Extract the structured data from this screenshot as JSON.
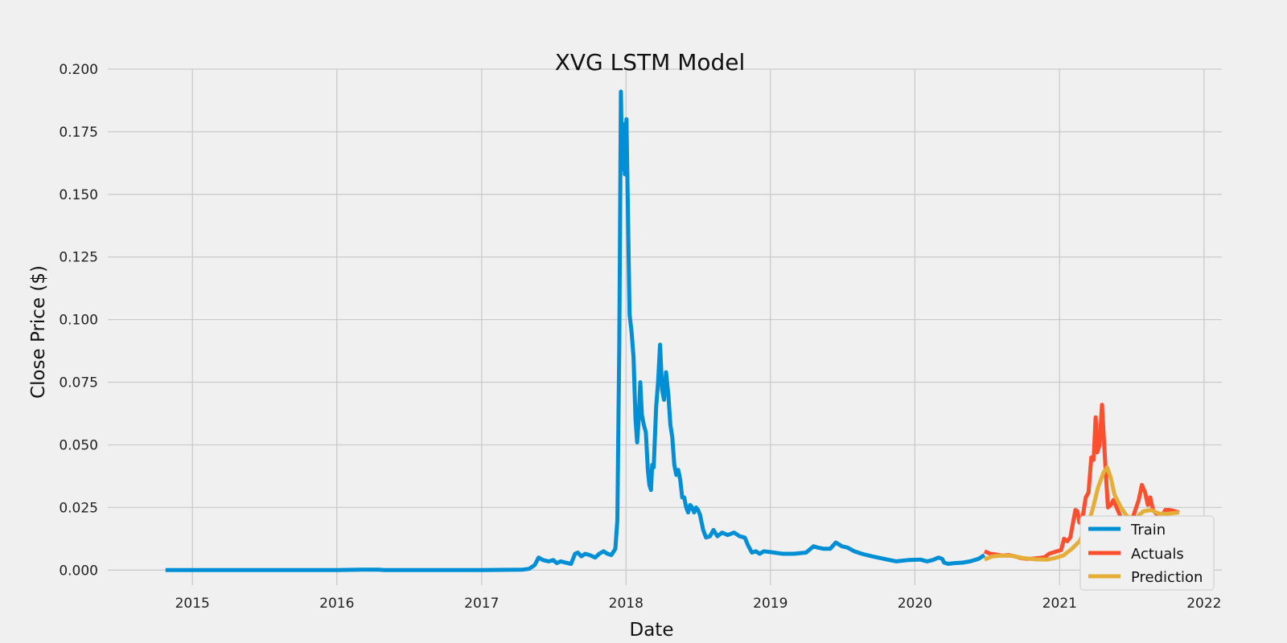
{
  "chart_data": {
    "type": "line",
    "title": "XVG LSTM Model",
    "xlabel": "Date",
    "ylabel": "Close Price ($)",
    "xlim": [
      "2014-06-01",
      "2022-02-15"
    ],
    "ylim": [
      -0.006,
      0.2
    ],
    "x_ticks": [
      "2015",
      "2016",
      "2017",
      "2018",
      "2019",
      "2020",
      "2021",
      "2022"
    ],
    "y_ticks": [
      "0.000",
      "0.025",
      "0.050",
      "0.075",
      "0.100",
      "0.125",
      "0.150",
      "0.175",
      "0.200"
    ],
    "grid": true,
    "legend_position": "lower right",
    "series": [
      {
        "name": "Train",
        "color": "#008fd5",
        "points": [
          [
            "2014-10-25",
            0.0
          ],
          [
            "2015-06-01",
            0.0
          ],
          [
            "2016-01-01",
            0.0
          ],
          [
            "2016-03-01",
            0.0002
          ],
          [
            "2016-04-15",
            0.0002
          ],
          [
            "2016-05-01",
            0.0
          ],
          [
            "2017-01-01",
            0.0
          ],
          [
            "2017-04-15",
            0.0002
          ],
          [
            "2017-05-01",
            0.0005
          ],
          [
            "2017-05-15",
            0.002
          ],
          [
            "2017-05-25",
            0.005
          ],
          [
            "2017-06-05",
            0.004
          ],
          [
            "2017-06-20",
            0.0035
          ],
          [
            "2017-07-01",
            0.004
          ],
          [
            "2017-07-10",
            0.0028
          ],
          [
            "2017-07-20",
            0.0035
          ],
          [
            "2017-08-01",
            0.003
          ],
          [
            "2017-08-15",
            0.0025
          ],
          [
            "2017-08-25",
            0.0065
          ],
          [
            "2017-09-01",
            0.007
          ],
          [
            "2017-09-10",
            0.0055
          ],
          [
            "2017-09-20",
            0.0065
          ],
          [
            "2017-10-01",
            0.006
          ],
          [
            "2017-10-15",
            0.005
          ],
          [
            "2017-10-25",
            0.0065
          ],
          [
            "2017-11-05",
            0.0075
          ],
          [
            "2017-11-15",
            0.0065
          ],
          [
            "2017-11-25",
            0.006
          ],
          [
            "2017-12-05",
            0.0085
          ],
          [
            "2017-12-10",
            0.02
          ],
          [
            "2017-12-15",
            0.09
          ],
          [
            "2017-12-19",
            0.191
          ],
          [
            "2017-12-22",
            0.16
          ],
          [
            "2017-12-26",
            0.178
          ],
          [
            "2017-12-29",
            0.158
          ],
          [
            "2018-01-02",
            0.18
          ],
          [
            "2018-01-06",
            0.14
          ],
          [
            "2018-01-10",
            0.102
          ],
          [
            "2018-01-15",
            0.095
          ],
          [
            "2018-01-20",
            0.085
          ],
          [
            "2018-01-25",
            0.06
          ],
          [
            "2018-01-29",
            0.051
          ],
          [
            "2018-02-02",
            0.06
          ],
          [
            "2018-02-06",
            0.075
          ],
          [
            "2018-02-10",
            0.062
          ],
          [
            "2018-02-15",
            0.058
          ],
          [
            "2018-02-20",
            0.055
          ],
          [
            "2018-02-25",
            0.04
          ],
          [
            "2018-03-01",
            0.034
          ],
          [
            "2018-03-05",
            0.032
          ],
          [
            "2018-03-08",
            0.042
          ],
          [
            "2018-03-12",
            0.041
          ],
          [
            "2018-03-18",
            0.065
          ],
          [
            "2018-03-23",
            0.075
          ],
          [
            "2018-03-28",
            0.09
          ],
          [
            "2018-04-02",
            0.072
          ],
          [
            "2018-04-07",
            0.068
          ],
          [
            "2018-04-12",
            0.079
          ],
          [
            "2018-04-18",
            0.07
          ],
          [
            "2018-04-23",
            0.058
          ],
          [
            "2018-04-28",
            0.053
          ],
          [
            "2018-05-03",
            0.042
          ],
          [
            "2018-05-08",
            0.038
          ],
          [
            "2018-05-13",
            0.04
          ],
          [
            "2018-05-18",
            0.036
          ],
          [
            "2018-05-23",
            0.029
          ],
          [
            "2018-05-28",
            0.029
          ],
          [
            "2018-06-02",
            0.025
          ],
          [
            "2018-06-07",
            0.023
          ],
          [
            "2018-06-12",
            0.026
          ],
          [
            "2018-06-17",
            0.025
          ],
          [
            "2018-06-22",
            0.023
          ],
          [
            "2018-06-27",
            0.025
          ],
          [
            "2018-07-02",
            0.024
          ],
          [
            "2018-07-07",
            0.022
          ],
          [
            "2018-07-15",
            0.016
          ],
          [
            "2018-07-22",
            0.013
          ],
          [
            "2018-08-01",
            0.0135
          ],
          [
            "2018-08-10",
            0.016
          ],
          [
            "2018-08-20",
            0.0135
          ],
          [
            "2018-09-01",
            0.015
          ],
          [
            "2018-09-15",
            0.014
          ],
          [
            "2018-10-01",
            0.015
          ],
          [
            "2018-10-15",
            0.0135
          ],
          [
            "2018-10-28",
            0.013
          ],
          [
            "2018-11-05",
            0.01
          ],
          [
            "2018-11-15",
            0.007
          ],
          [
            "2018-11-25",
            0.0075
          ],
          [
            "2018-12-05",
            0.0065
          ],
          [
            "2018-12-15",
            0.0075
          ],
          [
            "2019-01-01",
            0.0072
          ],
          [
            "2019-02-01",
            0.0065
          ],
          [
            "2019-03-01",
            0.0065
          ],
          [
            "2019-04-01",
            0.007
          ],
          [
            "2019-04-20",
            0.0095
          ],
          [
            "2019-05-01",
            0.009
          ],
          [
            "2019-05-15",
            0.0085
          ],
          [
            "2019-06-01",
            0.0085
          ],
          [
            "2019-06-15",
            0.011
          ],
          [
            "2019-07-01",
            0.0095
          ],
          [
            "2019-07-15",
            0.009
          ],
          [
            "2019-08-01",
            0.0075
          ],
          [
            "2019-08-20",
            0.0065
          ],
          [
            "2019-09-15",
            0.0055
          ],
          [
            "2019-10-15",
            0.0045
          ],
          [
            "2019-11-15",
            0.0035
          ],
          [
            "2019-12-15",
            0.004
          ],
          [
            "2020-01-15",
            0.0042
          ],
          [
            "2020-02-01",
            0.0035
          ],
          [
            "2020-02-15",
            0.004
          ],
          [
            "2020-03-01",
            0.005
          ],
          [
            "2020-03-10",
            0.0045
          ],
          [
            "2020-03-15",
            0.003
          ],
          [
            "2020-03-25",
            0.0025
          ],
          [
            "2020-04-10",
            0.0028
          ],
          [
            "2020-05-01",
            0.003
          ],
          [
            "2020-05-20",
            0.0035
          ],
          [
            "2020-06-10",
            0.0045
          ],
          [
            "2020-06-25",
            0.006
          ]
        ]
      },
      {
        "name": "Actuals",
        "color": "#fc4f30",
        "points": [
          [
            "2020-06-25",
            0.0075
          ],
          [
            "2020-07-10",
            0.0065
          ],
          [
            "2020-07-25",
            0.0062
          ],
          [
            "2020-08-10",
            0.0058
          ],
          [
            "2020-08-25",
            0.006
          ],
          [
            "2020-09-10",
            0.0055
          ],
          [
            "2020-09-25",
            0.0048
          ],
          [
            "2020-10-10",
            0.0045
          ],
          [
            "2020-10-25",
            0.0046
          ],
          [
            "2020-11-10",
            0.0048
          ],
          [
            "2020-11-25",
            0.0052
          ],
          [
            "2020-12-05",
            0.0065
          ],
          [
            "2020-12-15",
            0.007
          ],
          [
            "2020-12-25",
            0.0075
          ],
          [
            "2021-01-05",
            0.008
          ],
          [
            "2021-01-12",
            0.0125
          ],
          [
            "2021-01-20",
            0.0115
          ],
          [
            "2021-01-28",
            0.013
          ],
          [
            "2021-02-05",
            0.02
          ],
          [
            "2021-02-10",
            0.024
          ],
          [
            "2021-02-15",
            0.0235
          ],
          [
            "2021-02-20",
            0.019
          ],
          [
            "2021-02-28",
            0.021
          ],
          [
            "2021-03-08",
            0.029
          ],
          [
            "2021-03-15",
            0.031
          ],
          [
            "2021-03-22",
            0.045
          ],
          [
            "2021-03-28",
            0.044
          ],
          [
            "2021-04-02",
            0.061
          ],
          [
            "2021-04-06",
            0.047
          ],
          [
            "2021-04-12",
            0.05
          ],
          [
            "2021-04-18",
            0.066
          ],
          [
            "2021-04-23",
            0.052
          ],
          [
            "2021-04-28",
            0.038
          ],
          [
            "2021-05-03",
            0.025
          ],
          [
            "2021-05-10",
            0.026
          ],
          [
            "2021-05-17",
            0.028
          ],
          [
            "2021-05-25",
            0.025
          ],
          [
            "2021-06-05",
            0.021
          ],
          [
            "2021-06-20",
            0.019
          ],
          [
            "2021-07-05",
            0.021
          ],
          [
            "2021-07-20",
            0.028
          ],
          [
            "2021-07-28",
            0.034
          ],
          [
            "2021-08-05",
            0.031
          ],
          [
            "2021-08-12",
            0.026
          ],
          [
            "2021-08-18",
            0.029
          ],
          [
            "2021-08-25",
            0.024
          ],
          [
            "2021-09-05",
            0.022
          ],
          [
            "2021-09-15",
            0.021
          ],
          [
            "2021-09-25",
            0.024
          ],
          [
            "2021-10-05",
            0.024
          ],
          [
            "2021-10-20",
            0.0235
          ],
          [
            "2021-10-30",
            0.023
          ]
        ]
      },
      {
        "name": "Prediction",
        "color": "#e5ae38",
        "points": [
          [
            "2020-06-25",
            0.0042
          ],
          [
            "2020-07-15",
            0.0055
          ],
          [
            "2020-08-05",
            0.0058
          ],
          [
            "2020-09-01",
            0.0057
          ],
          [
            "2020-10-01",
            0.0048
          ],
          [
            "2020-11-01",
            0.0043
          ],
          [
            "2020-12-01",
            0.0042
          ],
          [
            "2020-12-20",
            0.0048
          ],
          [
            "2021-01-10",
            0.0058
          ],
          [
            "2021-02-01",
            0.0085
          ],
          [
            "2021-02-20",
            0.0115
          ],
          [
            "2021-03-10",
            0.017
          ],
          [
            "2021-03-25",
            0.024
          ],
          [
            "2021-04-08",
            0.033
          ],
          [
            "2021-04-22",
            0.039
          ],
          [
            "2021-05-01",
            0.041
          ],
          [
            "2021-05-10",
            0.037
          ],
          [
            "2021-05-20",
            0.03
          ],
          [
            "2021-06-05",
            0.025
          ],
          [
            "2021-06-20",
            0.0215
          ],
          [
            "2021-07-10",
            0.0205
          ],
          [
            "2021-08-01",
            0.0235
          ],
          [
            "2021-08-20",
            0.024
          ],
          [
            "2021-09-10",
            0.0225
          ],
          [
            "2021-10-01",
            0.0225
          ],
          [
            "2021-10-30",
            0.023
          ]
        ]
      }
    ]
  }
}
